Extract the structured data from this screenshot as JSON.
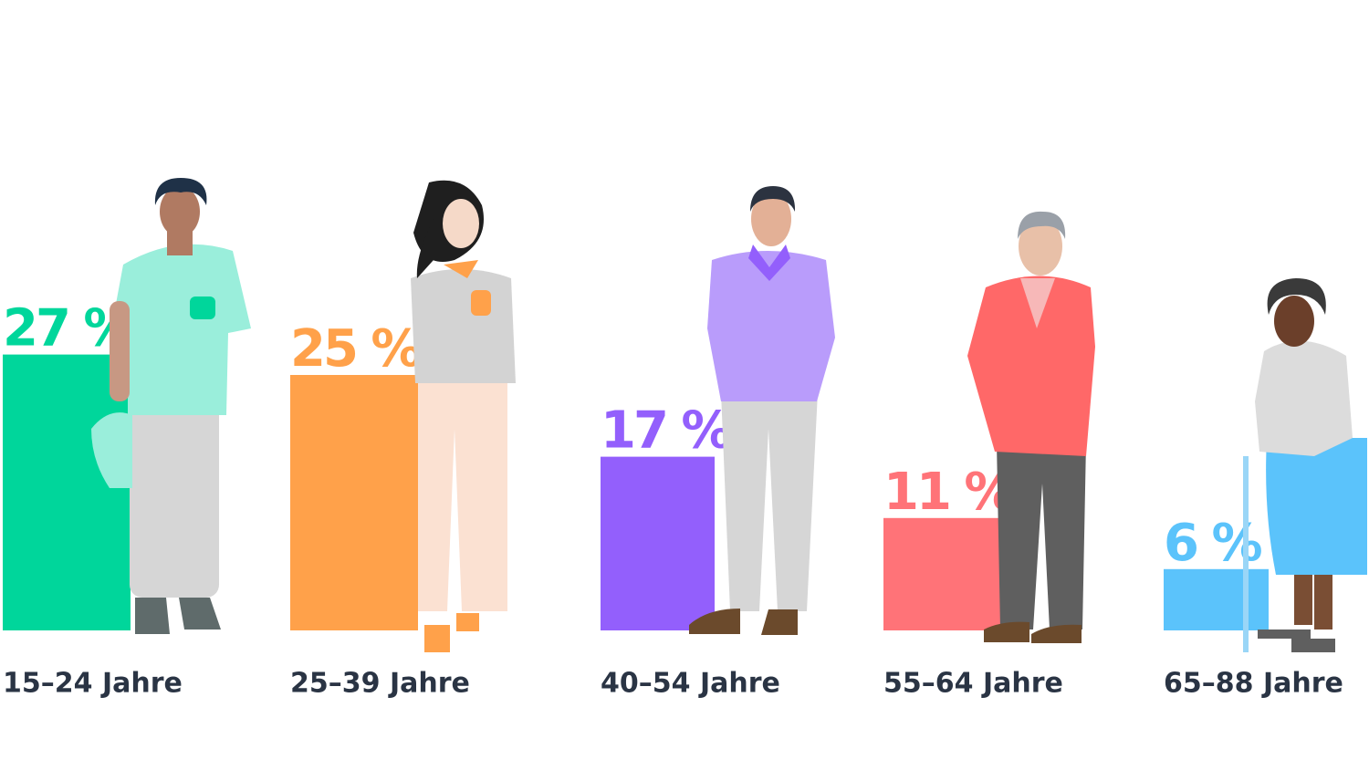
{
  "chart_data": {
    "type": "bar",
    "categories": [
      "15–24 Jahre",
      "25–39 Jahre",
      "40–54 Jahre",
      "55–64 Jahre",
      "65–88 Jahre"
    ],
    "values": [
      27,
      25,
      17,
      11,
      6
    ],
    "value_labels": [
      "27 %",
      "25 %",
      "17 %",
      "11 %",
      "6 %"
    ],
    "colors": [
      "#00d69b",
      "#ffa14a",
      "#935ffc",
      "#ff7378",
      "#5bc3fb"
    ]
  }
}
